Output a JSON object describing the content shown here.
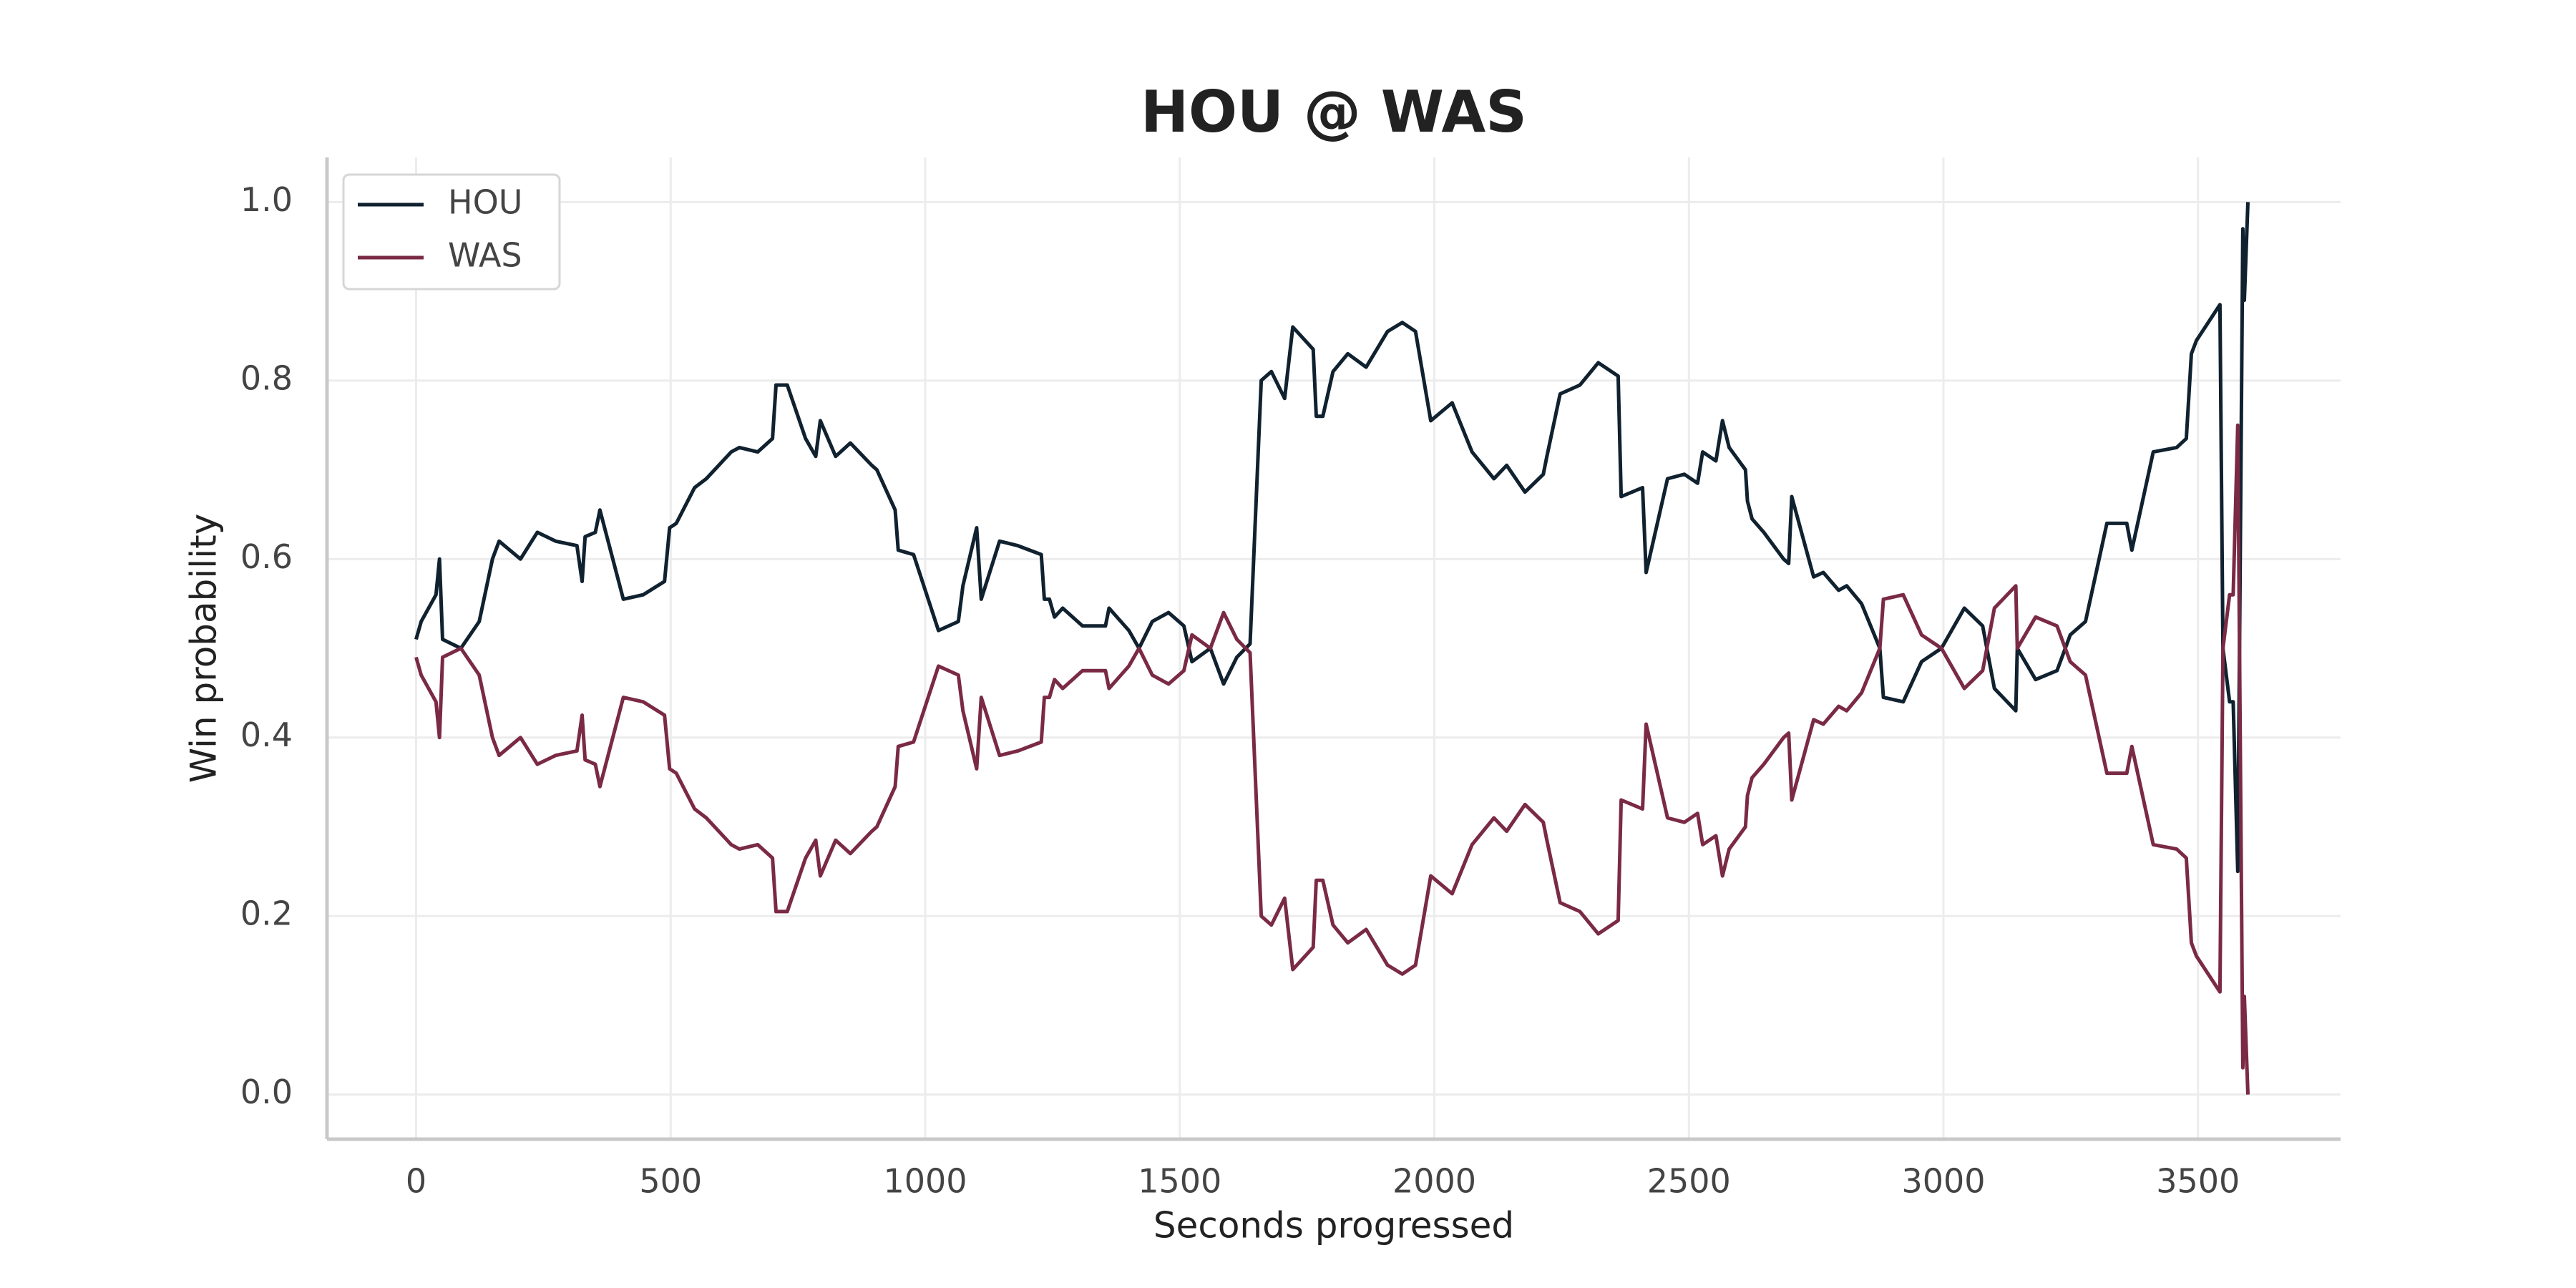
{
  "chart_data": {
    "type": "line",
    "title": "HOU @ WAS",
    "x_label": "Seconds progressed",
    "y_label": "Win probability",
    "x": [
      0,
      10,
      39,
      46,
      52,
      88,
      124,
      150,
      163,
      205,
      238,
      274,
      316,
      326,
      332,
      352,
      361,
      407,
      446,
      488,
      498,
      511,
      547,
      570,
      619,
      635,
      671,
      700,
      707,
      729,
      765,
      785,
      794,
      824,
      853,
      895,
      905,
      941,
      947,
      977,
      1026,
      1065,
      1074,
      1101,
      1110,
      1146,
      1182,
      1228,
      1234,
      1244,
      1254,
      1270,
      1309,
      1354,
      1361,
      1400,
      1420,
      1446,
      1478,
      1508,
      1524,
      1560,
      1586,
      1612,
      1638,
      1660,
      1680,
      1706,
      1722,
      1762,
      1768,
      1781,
      1801,
      1830,
      1866,
      1908,
      1937,
      1963,
      1993,
      2035,
      2074,
      2117,
      2142,
      2178,
      2214,
      2221,
      2247,
      2286,
      2322,
      2361,
      2367,
      2409,
      2416,
      2458,
      2491,
      2517,
      2527,
      2553,
      2566,
      2579,
      2611,
      2615,
      2624,
      2647,
      2686,
      2696,
      2702,
      2745,
      2764,
      2794,
      2810,
      2839,
      2875,
      2882,
      2921,
      2957,
      2996,
      3041,
      3077,
      3100,
      3142,
      3145,
      3181,
      3223,
      3249,
      3279,
      3321,
      3360,
      3370,
      3412,
      3458,
      3477,
      3487,
      3497,
      3543,
      3549,
      3562,
      3569,
      3578,
      3588,
      3591,
      3598
    ],
    "series": [
      {
        "name": "HOU",
        "color": "#10212f",
        "values": [
          0.51,
          0.53,
          0.56,
          0.6,
          0.51,
          0.5,
          0.53,
          0.6,
          0.62,
          0.6,
          0.63,
          0.62,
          0.615,
          0.575,
          0.625,
          0.63,
          0.655,
          0.555,
          0.56,
          0.575,
          0.635,
          0.64,
          0.68,
          0.69,
          0.72,
          0.725,
          0.72,
          0.735,
          0.795,
          0.795,
          0.735,
          0.715,
          0.755,
          0.715,
          0.73,
          0.705,
          0.7,
          0.655,
          0.61,
          0.605,
          0.52,
          0.53,
          0.57,
          0.635,
          0.555,
          0.62,
          0.615,
          0.605,
          0.555,
          0.555,
          0.535,
          0.545,
          0.525,
          0.525,
          0.545,
          0.52,
          0.5,
          0.53,
          0.54,
          0.525,
          0.485,
          0.5,
          0.46,
          0.49,
          0.505,
          0.8,
          0.81,
          0.78,
          0.86,
          0.835,
          0.76,
          0.76,
          0.81,
          0.83,
          0.815,
          0.855,
          0.865,
          0.855,
          0.755,
          0.775,
          0.72,
          0.69,
          0.705,
          0.675,
          0.695,
          0.715,
          0.785,
          0.795,
          0.82,
          0.805,
          0.67,
          0.68,
          0.585,
          0.69,
          0.695,
          0.685,
          0.72,
          0.71,
          0.755,
          0.725,
          0.7,
          0.665,
          0.645,
          0.63,
          0.6,
          0.595,
          0.67,
          0.58,
          0.585,
          0.565,
          0.57,
          0.55,
          0.5,
          0.445,
          0.44,
          0.485,
          0.5,
          0.545,
          0.525,
          0.455,
          0.43,
          0.5,
          0.465,
          0.475,
          0.515,
          0.53,
          0.64,
          0.64,
          0.61,
          0.72,
          0.725,
          0.735,
          0.83,
          0.845,
          0.885,
          0.5,
          0.44,
          0.44,
          0.25,
          0.97,
          0.89,
          1.0
        ]
      },
      {
        "name": "WAS",
        "color": "#7a2a45",
        "values": [
          0.49,
          0.47,
          0.44,
          0.4,
          0.49,
          0.5,
          0.47,
          0.4,
          0.38,
          0.4,
          0.37,
          0.38,
          0.385,
          0.425,
          0.375,
          0.37,
          0.345,
          0.445,
          0.44,
          0.425,
          0.365,
          0.36,
          0.32,
          0.31,
          0.28,
          0.275,
          0.28,
          0.265,
          0.205,
          0.205,
          0.265,
          0.285,
          0.245,
          0.285,
          0.27,
          0.295,
          0.3,
          0.345,
          0.39,
          0.395,
          0.48,
          0.47,
          0.43,
          0.365,
          0.445,
          0.38,
          0.385,
          0.395,
          0.445,
          0.445,
          0.465,
          0.455,
          0.475,
          0.475,
          0.455,
          0.48,
          0.5,
          0.47,
          0.46,
          0.475,
          0.515,
          0.5,
          0.54,
          0.51,
          0.495,
          0.2,
          0.19,
          0.22,
          0.14,
          0.165,
          0.24,
          0.24,
          0.19,
          0.17,
          0.185,
          0.145,
          0.135,
          0.145,
          0.245,
          0.225,
          0.28,
          0.31,
          0.295,
          0.325,
          0.305,
          0.285,
          0.215,
          0.205,
          0.18,
          0.195,
          0.33,
          0.32,
          0.415,
          0.31,
          0.305,
          0.315,
          0.28,
          0.29,
          0.245,
          0.275,
          0.3,
          0.335,
          0.355,
          0.37,
          0.4,
          0.405,
          0.33,
          0.42,
          0.415,
          0.435,
          0.43,
          0.45,
          0.5,
          0.555,
          0.56,
          0.515,
          0.5,
          0.455,
          0.475,
          0.545,
          0.57,
          0.5,
          0.535,
          0.525,
          0.485,
          0.47,
          0.36,
          0.36,
          0.39,
          0.28,
          0.275,
          0.265,
          0.17,
          0.155,
          0.115,
          0.5,
          0.56,
          0.56,
          0.75,
          0.03,
          0.11,
          0.0
        ]
      }
    ],
    "xlim": [
      -175,
      3780
    ],
    "ylim": [
      -0.05,
      1.05
    ],
    "xticks": [
      0,
      500,
      1000,
      1500,
      2000,
      2500,
      3000,
      3500
    ],
    "yticks": [
      {
        "value": 0,
        "label": "0.0"
      },
      0.2,
      0.4,
      0.6,
      0.8,
      {
        "value": 1,
        "label": "1.0"
      }
    ],
    "grid": true,
    "legend": "upper left"
  }
}
